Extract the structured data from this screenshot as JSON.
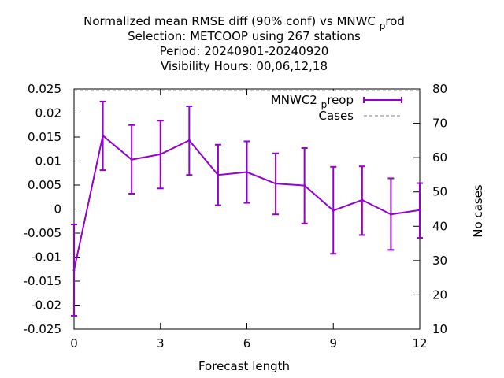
{
  "chart_data": {
    "type": "line",
    "title_lines": [
      "Normalized mean RMSE diff (90% conf) vs MNWC_prod",
      "Selection: METCOOP using   267 stations",
      "Period: 20240901-20240920",
      "Visibility   Hours:  00,06,12,18"
    ],
    "title_sub": {
      "prefix": "Normalized mean RMSE diff (90% conf) vs MNWC",
      "sub": "p",
      "suffix": "rod"
    },
    "xlabel": "Forecast length",
    "ylabel": "",
    "y2label": "No cases",
    "xlim": [
      0,
      12
    ],
    "ylim": [
      -0.025,
      0.025
    ],
    "y2lim": [
      10,
      80
    ],
    "xticks": [
      "0",
      "3",
      "6",
      "9",
      "12"
    ],
    "yticks": [
      "-0.025",
      "-0.02",
      "-0.015",
      "-0.01",
      "-0.005",
      "0",
      "0.005",
      "0.01",
      "0.015",
      "0.02",
      "0.025"
    ],
    "y2ticks": [
      "10",
      "20",
      "30",
      "40",
      "50",
      "60",
      "70",
      "80"
    ],
    "legend_position": "top-right",
    "series": [
      {
        "name": "MNWC2_preop",
        "name_parts": {
          "prefix": "MNWC2",
          "sub": "p",
          "suffix": "reop"
        },
        "color": "#9400d3",
        "x": [
          0,
          1,
          2,
          3,
          4,
          5,
          6,
          7,
          8,
          9,
          10,
          11,
          12
        ],
        "y": [
          -0.0127,
          0.0153,
          0.0103,
          0.0114,
          0.0143,
          0.0071,
          0.0077,
          0.0053,
          0.0049,
          -0.0003,
          0.0019,
          -0.0011,
          -0.0002
        ],
        "err_low": [
          -0.0222,
          0.0081,
          0.0032,
          0.0043,
          0.0071,
          0.0008,
          0.0013,
          -0.0011,
          -0.003,
          -0.0093,
          -0.0054,
          -0.0085,
          -0.006
        ],
        "err_high": [
          -0.0032,
          0.0224,
          0.0175,
          0.0184,
          0.0214,
          0.0134,
          0.0141,
          0.0116,
          0.0127,
          0.0088,
          0.0089,
          0.0064,
          0.0054
        ]
      },
      {
        "name": "Cases",
        "color": "#808080",
        "axis": "y2",
        "x": [
          0,
          12
        ],
        "y": [
          79.5,
          79.5
        ]
      }
    ],
    "grid": false
  }
}
